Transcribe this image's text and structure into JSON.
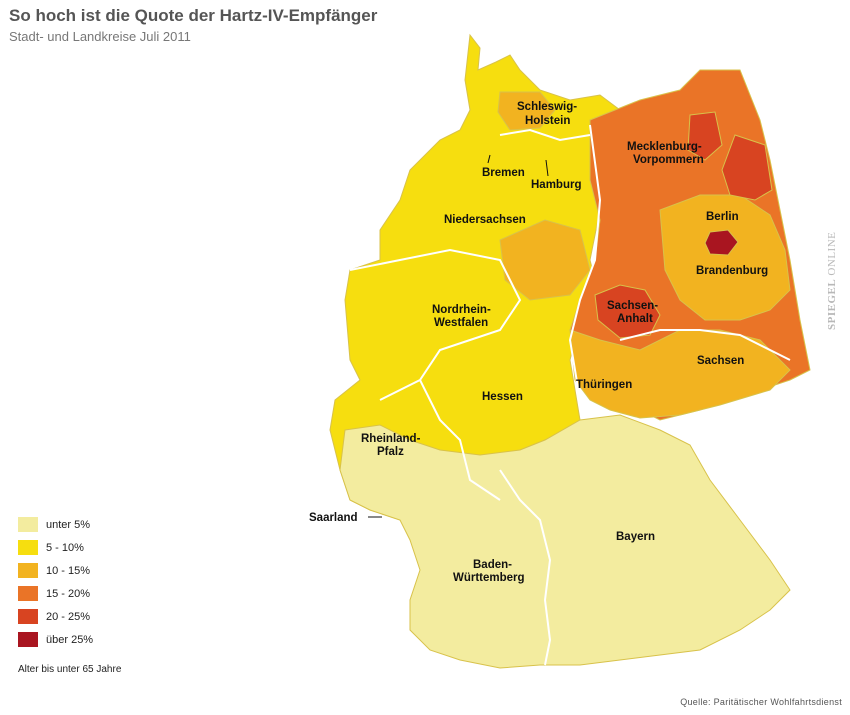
{
  "header": {
    "title": "So hoch ist die Quote der Hartz-IV-Empfänger",
    "subtitle": "Stadt- und Landkreise Juli 2011"
  },
  "colors": {
    "under5": "#f3ec9f",
    "5to10": "#f6de0f",
    "10to15": "#f2b320",
    "15to20": "#ea7427",
    "20to25": "#d84421",
    "over25": "#a91520",
    "border": "#d8c24a",
    "state_border": "#ffffff"
  },
  "legend": {
    "items": [
      {
        "label": "unter 5%",
        "color": "#f3ec9f"
      },
      {
        "label": "5 - 10%",
        "color": "#f6de0f"
      },
      {
        "label": "10 - 15%",
        "color": "#f2b320"
      },
      {
        "label": "15 - 20%",
        "color": "#ea7427"
      },
      {
        "label": "20 - 25%",
        "color": "#d84421"
      },
      {
        "label": "über 25%",
        "color": "#a91520"
      }
    ],
    "note": "Alter bis unter 65 Jahre"
  },
  "states": {
    "schleswig_holstein": [
      "Schleswig-",
      "Holstein"
    ],
    "mecklenburg": [
      "Mecklenburg-",
      "Vorpommern"
    ],
    "bremen": "Bremen",
    "hamburg": "Hamburg",
    "niedersachsen": "Niedersachsen",
    "berlin": "Berlin",
    "brandenburg": "Brandenburg",
    "sachsen_anhalt": [
      "Sachsen-",
      "Anhalt"
    ],
    "nrw": [
      "Nordrhein-",
      "Westfalen"
    ],
    "sachsen": "Sachsen",
    "thueringen": "Thüringen",
    "hessen": "Hessen",
    "rheinland_pfalz": [
      "Rheinland-",
      "Pfalz"
    ],
    "saarland": "Saarland",
    "bayern": "Bayern",
    "baden_wuerttemberg": [
      "Baden-",
      "Württemberg"
    ]
  },
  "footer": {
    "source": "Quelle: Paritätischer Wohlfahrtsdienst",
    "brand_bold": "SPIEGEL",
    "brand_rest": " ONLINE"
  }
}
